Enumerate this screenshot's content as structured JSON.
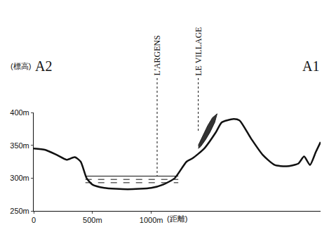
{
  "chart_data": {
    "type": "line",
    "color": "#111111",
    "x_label": "(距離)",
    "y_label": "(標高)",
    "end_labels": {
      "left": "A2",
      "right": "A1"
    },
    "x": [
      0,
      100,
      200,
      280,
      350,
      400,
      450,
      500,
      600,
      800,
      1000,
      1100,
      1200,
      1300,
      1350,
      1450,
      1550,
      1600,
      1700,
      1750,
      1850,
      1950,
      2050,
      2150,
      2250,
      2300,
      2350,
      2400,
      2440
    ],
    "values": [
      345,
      343,
      335,
      328,
      332,
      325,
      300,
      290,
      285,
      283,
      285,
      290,
      300,
      325,
      330,
      345,
      370,
      385,
      390,
      388,
      360,
      335,
      320,
      318,
      322,
      333,
      320,
      340,
      355
    ],
    "xlim": [
      0,
      2440
    ],
    "xticks": [
      0,
      {
        "value": 500,
        "label": "500m"
      },
      {
        "value": 1000,
        "label": "1000m"
      }
    ],
    "ylim": [
      250,
      400
    ],
    "yticks": [
      {
        "value": 250,
        "label": "250m"
      },
      {
        "value": 300,
        "label": "300m"
      },
      {
        "value": 350,
        "label": "350m"
      },
      {
        "value": 400,
        "label": "400m"
      }
    ],
    "grid": false,
    "water": {
      "xlim": [
        440,
        1230
      ],
      "levels": [
        303,
        298,
        293
      ]
    },
    "village": {
      "x": [
        1400,
        1440,
        1480,
        1520,
        1560,
        1540,
        1500,
        1460,
        1420,
        1400
      ],
      "y": [
        350,
        365,
        380,
        392,
        398,
        385,
        370,
        358,
        348,
        345
      ]
    },
    "labels": [
      {
        "text": "L'ARGENS",
        "x": 1050,
        "y": 303
      },
      {
        "text": "LE VILLAGE",
        "x": 1400,
        "y": 372
      }
    ]
  }
}
